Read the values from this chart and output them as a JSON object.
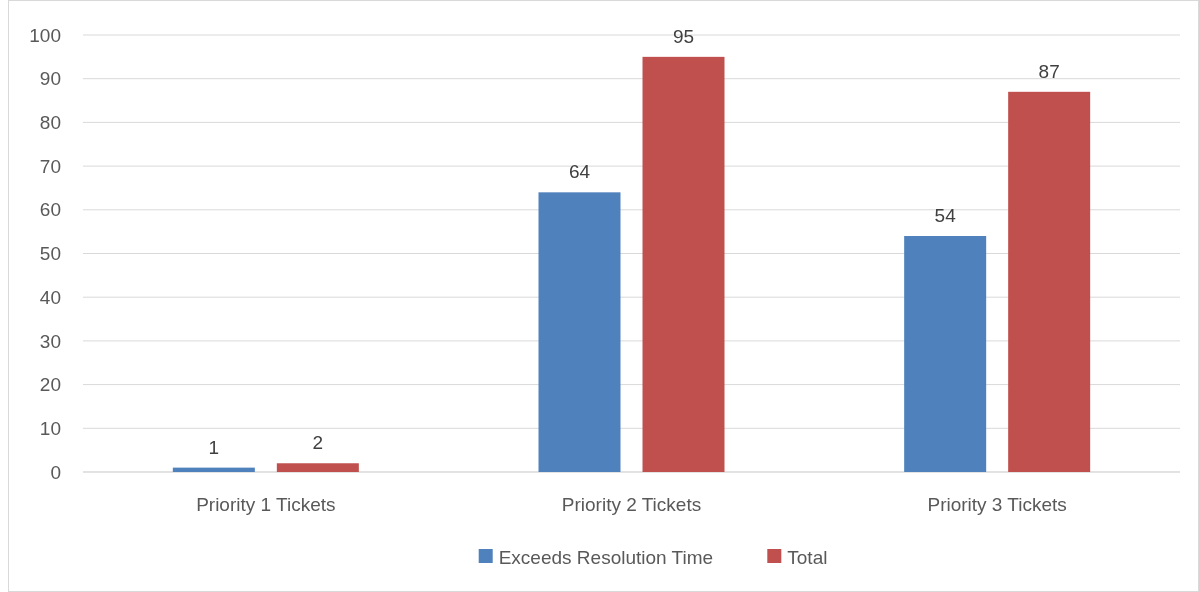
{
  "chart_data": {
    "type": "bar",
    "categories": [
      "Priority 1 Tickets",
      "Priority 2 Tickets",
      "Priority 3 Tickets"
    ],
    "series": [
      {
        "name": "Exceeds Resolution Time",
        "color": "#4f81bd",
        "values": [
          1,
          64,
          54
        ]
      },
      {
        "name": "Total",
        "color": "#c0504d",
        "values": [
          2,
          95,
          87
        ]
      }
    ],
    "ylim": [
      0,
      100
    ],
    "yticks": [
      0,
      10,
      20,
      30,
      40,
      50,
      60,
      70,
      80,
      90,
      100
    ],
    "grid": "y",
    "legend": "bottom",
    "data_labels": true
  }
}
